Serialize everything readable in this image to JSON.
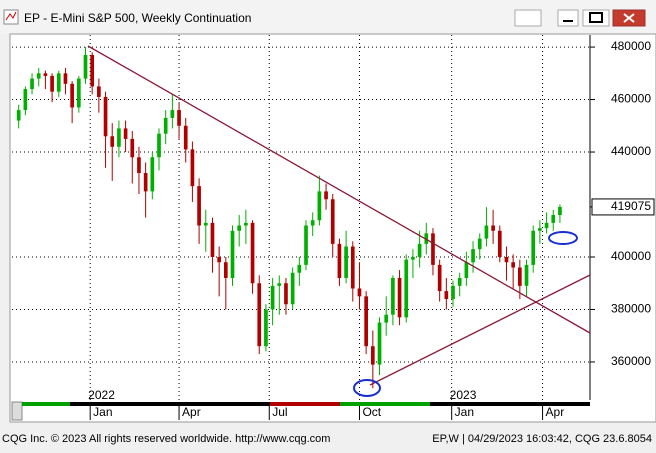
{
  "window_title": "EP - E-Mini S&P 500, Weekly Continuation",
  "chart_data": {
    "type": "candlestick",
    "up_color": "#00b000",
    "down_color": "#b00000",
    "candles": [
      [
        452000,
        458000,
        449000,
        456000
      ],
      [
        456000,
        465000,
        454000,
        464000
      ],
      [
        464000,
        470000,
        462000,
        468000
      ],
      [
        468000,
        472000,
        465000,
        470000
      ],
      [
        470000,
        471000,
        464000,
        469000
      ],
      [
        469000,
        470000,
        459000,
        463000
      ],
      [
        463000,
        471000,
        461000,
        470000
      ],
      [
        470000,
        472000,
        462000,
        466000
      ],
      [
        466000,
        467000,
        451000,
        457000
      ],
      [
        457000,
        469000,
        455000,
        468000
      ],
      [
        468000,
        480000,
        466000,
        477000
      ],
      [
        477000,
        478000,
        462000,
        465000
      ],
      [
        465000,
        468000,
        455000,
        461000
      ],
      [
        461000,
        463000,
        434000,
        446000
      ],
      [
        446000,
        451000,
        429000,
        442000
      ],
      [
        442000,
        452000,
        438000,
        449000
      ],
      [
        449000,
        452000,
        440000,
        445000
      ],
      [
        445000,
        448000,
        428000,
        438000
      ],
      [
        438000,
        442000,
        424000,
        432000
      ],
      [
        432000,
        436000,
        415000,
        425000
      ],
      [
        425000,
        440000,
        422000,
        438000
      ],
      [
        438000,
        449000,
        433000,
        447000
      ],
      [
        447000,
        456000,
        443000,
        453000
      ],
      [
        453000,
        462000,
        449000,
        456000
      ],
      [
        456000,
        459000,
        445000,
        450000
      ],
      [
        450000,
        453000,
        436000,
        441000
      ],
      [
        441000,
        444000,
        421000,
        427000
      ],
      [
        427000,
        430000,
        405000,
        412000
      ],
      [
        412000,
        418000,
        402000,
        413000
      ],
      [
        413000,
        415000,
        394000,
        400000
      ],
      [
        400000,
        404000,
        385000,
        398000
      ],
      [
        398000,
        400000,
        380000,
        392000
      ],
      [
        392000,
        412000,
        389000,
        410000
      ],
      [
        410000,
        416000,
        404000,
        412000
      ],
      [
        412000,
        418000,
        405000,
        413000
      ],
      [
        413000,
        414000,
        386000,
        390000
      ],
      [
        390000,
        393000,
        363000,
        366000
      ],
      [
        366000,
        382000,
        364000,
        380000
      ],
      [
        380000,
        392000,
        374000,
        389000
      ],
      [
        389000,
        393000,
        378000,
        390000
      ],
      [
        390000,
        392000,
        378000,
        382000
      ],
      [
        382000,
        396000,
        380000,
        394000
      ],
      [
        394000,
        400000,
        389000,
        397000
      ],
      [
        397000,
        414000,
        395000,
        412000
      ],
      [
        412000,
        417000,
        408000,
        414000
      ],
      [
        414000,
        431000,
        412000,
        425000
      ],
      [
        425000,
        428000,
        418000,
        422000
      ],
      [
        422000,
        424000,
        400000,
        405000
      ],
      [
        405000,
        407000,
        389000,
        392000
      ],
      [
        392000,
        410000,
        390000,
        404000
      ],
      [
        404000,
        406000,
        383000,
        388000
      ],
      [
        388000,
        398000,
        380000,
        385000
      ],
      [
        385000,
        387000,
        363000,
        366000
      ],
      [
        366000,
        372000,
        350000,
        359000
      ],
      [
        359000,
        377000,
        355000,
        375000
      ],
      [
        375000,
        385000,
        370000,
        378000
      ],
      [
        378000,
        393000,
        374000,
        392000
      ],
      [
        392000,
        395000,
        374000,
        377000
      ],
      [
        377000,
        401000,
        375000,
        399000
      ],
      [
        399000,
        403000,
        392000,
        400000
      ],
      [
        400000,
        410000,
        396000,
        405000
      ],
      [
        405000,
        413000,
        401000,
        409000
      ],
      [
        409000,
        411000,
        393000,
        397000
      ],
      [
        397000,
        399000,
        383000,
        387000
      ],
      [
        387000,
        392000,
        380000,
        384000
      ],
      [
        384000,
        391000,
        381000,
        389000
      ],
      [
        389000,
        394000,
        385000,
        392000
      ],
      [
        392000,
        402000,
        389000,
        398000
      ],
      [
        398000,
        406000,
        394000,
        403000
      ],
      [
        403000,
        409000,
        399000,
        407000
      ],
      [
        407000,
        419000,
        404000,
        412000
      ],
      [
        412000,
        418000,
        405000,
        410000
      ],
      [
        410000,
        412000,
        398000,
        400000
      ],
      [
        400000,
        404000,
        391000,
        398000
      ],
      [
        398000,
        401000,
        388000,
        396000
      ],
      [
        396000,
        399000,
        384000,
        389000
      ],
      [
        389000,
        399000,
        385000,
        397000
      ],
      [
        397000,
        412000,
        394000,
        410000
      ],
      [
        410000,
        414000,
        405000,
        411000
      ],
      [
        411000,
        417000,
        409000,
        413000
      ],
      [
        413000,
        418000,
        410000,
        416000
      ],
      [
        416000,
        420000,
        413000,
        419075
      ]
    ],
    "xlim": [
      -1,
      85.5
    ],
    "xticks": [
      {
        "value": 10.7,
        "label": "Jan"
      },
      {
        "value": 24,
        "label": "Apr"
      },
      {
        "value": 37.5,
        "label": "Jul"
      },
      {
        "value": 51,
        "label": "Oct"
      },
      {
        "value": 64.8,
        "label": "Jan"
      },
      {
        "value": 78.4,
        "label": "Apr"
      }
    ],
    "year_labels": [
      {
        "value": 10.7,
        "label": "2022"
      },
      {
        "value": 64.8,
        "label": "2023"
      }
    ],
    "ylim": [
      345500,
      484600
    ],
    "yticks": [
      360000,
      380000,
      400000,
      440000,
      460000,
      480000
    ],
    "grid": true,
    "last_price": 419075
  },
  "footer": {
    "left": "CQG Inc. © 2023 All rights reserved worldwide. http://www.cqg.com",
    "right": "EP,W | 04/29/2023 16:03:42, CQG 23.6.8054"
  }
}
